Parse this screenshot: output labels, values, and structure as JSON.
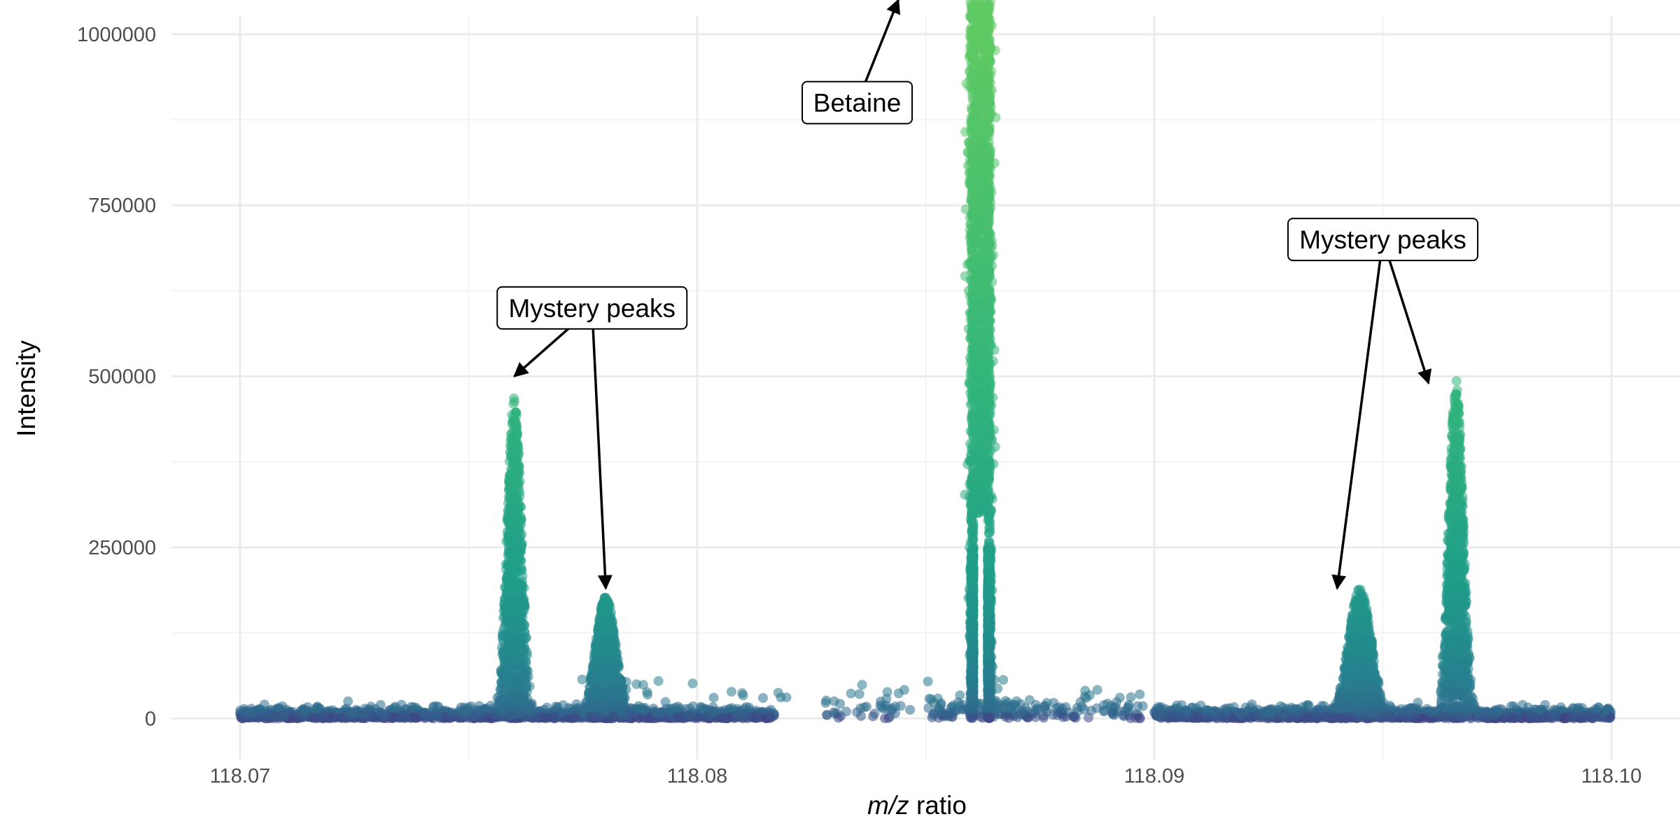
{
  "chart_data": {
    "type": "scatter",
    "title": "",
    "xlabel_italic": "m/z",
    "xlabel_rest": " ratio",
    "ylabel": "Intensity",
    "xlim": [
      118.0685,
      118.1015
    ],
    "ylim": [
      -60000,
      1050000
    ],
    "x_ticks": [
      118.07,
      118.08,
      118.09,
      118.1
    ],
    "x_tick_labels": [
      "118.07",
      "118.08",
      "118.09",
      "118.10"
    ],
    "y_ticks": [
      0,
      250000,
      500000,
      750000,
      1000000
    ],
    "y_tick_labels": [
      "0",
      "250000",
      "500000",
      "750000",
      "1000000"
    ],
    "grid": true,
    "color_scale": "viridis (by intensity)",
    "colors": {
      "low": "#3b528b",
      "mid": "#21908c",
      "high": "#5ec962",
      "grid": "#ebebeb"
    },
    "peaks": [
      {
        "mz": 118.076,
        "width": 0.00025,
        "height": 470000
      },
      {
        "mz": 118.078,
        "width": 0.00035,
        "height": 180000
      },
      {
        "mz": 118.0862,
        "width": 0.00028,
        "height": 1050000
      },
      {
        "mz": 118.0945,
        "width": 0.0004,
        "height": 190000
      },
      {
        "mz": 118.0966,
        "width": 0.00025,
        "height": 495000
      }
    ],
    "annotations": [
      {
        "label": "Betaine",
        "text_x": 118.0835,
        "text_y": 900000,
        "arrows": [
          {
            "x": 118.0844,
            "y": 1050000
          }
        ]
      },
      {
        "label": "Mystery peaks",
        "text_x": 118.0777,
        "text_y": 600000,
        "arrows": [
          {
            "x": 118.076,
            "y": 500000
          },
          {
            "x": 118.078,
            "y": 190000
          }
        ]
      },
      {
        "label": "Mystery peaks",
        "text_x": 118.095,
        "text_y": 700000,
        "arrows": [
          {
            "x": 118.094,
            "y": 190000
          },
          {
            "x": 118.096,
            "y": 490000
          }
        ]
      }
    ]
  }
}
